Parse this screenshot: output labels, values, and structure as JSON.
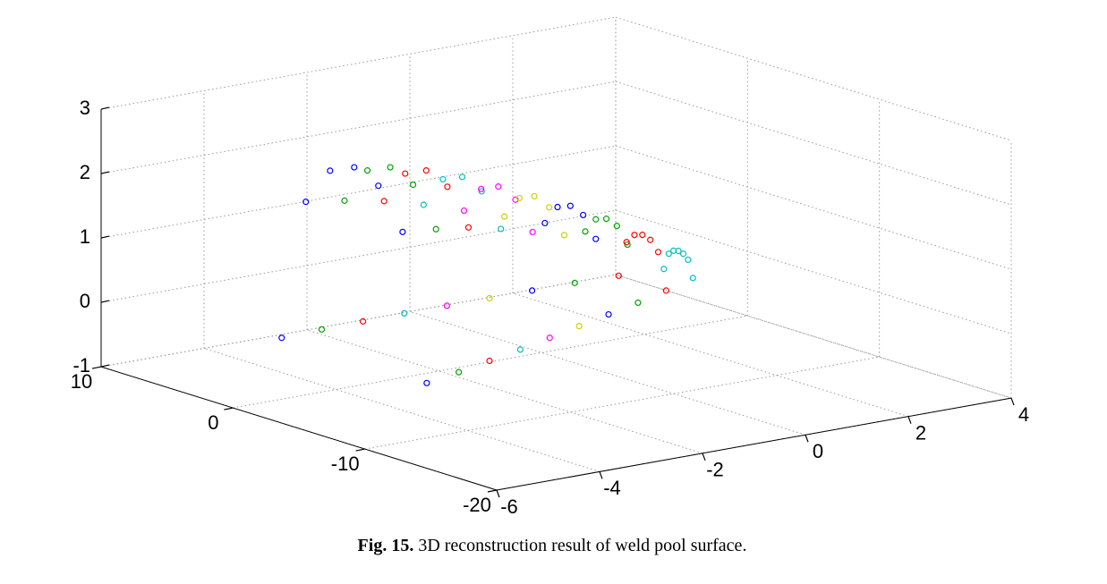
{
  "chart_data": {
    "type": "scatter3d",
    "xlim": [
      -6,
      4
    ],
    "ylim": [
      -20,
      10
    ],
    "zlim": [
      -1,
      3
    ],
    "xticks": [
      -6,
      -4,
      -2,
      0,
      2,
      4
    ],
    "yticks": [
      -20,
      -10,
      0,
      10
    ],
    "zticks": [
      -1,
      0,
      1,
      2,
      3
    ],
    "grid": true,
    "series": [
      {
        "color": "#0000ff",
        "x": [
          -3.9,
          -3.9,
          -3.9,
          -3.9,
          -3.9,
          -3.9,
          -3.9
        ],
        "y": [
          -6.5,
          -4.67,
          -2.83,
          -1,
          0.83,
          2.67,
          4.5
        ],
        "z": [
          -0.5,
          1.73,
          2.33,
          2.5,
          2.33,
          1.73,
          -0.5
        ]
      },
      {
        "color": "#00a000",
        "x": [
          -3.2,
          -3.2,
          -3.2,
          -3.2,
          -3.2,
          -3.2,
          -3.2
        ],
        "y": [
          -6.2,
          -4.47,
          -2.73,
          -1,
          0.73,
          2.47,
          4.2
        ],
        "z": [
          -0.45,
          1.66,
          2.24,
          2.4,
          2.24,
          1.66,
          -0.45
        ]
      },
      {
        "color": "#ff0000",
        "x": [
          -2.5,
          -2.5,
          -2.5,
          -2.5,
          -2.5,
          -2.5,
          -2.5
        ],
        "y": [
          -5.8,
          -4.2,
          -2.6,
          -1,
          0.6,
          2.2,
          3.8
        ],
        "z": [
          -0.4,
          1.57,
          2.1,
          2.25,
          2.1,
          1.57,
          -0.4
        ]
      },
      {
        "color": "#00c0c0",
        "x": [
          -1.8,
          -1.8,
          -1.8,
          -1.8,
          -1.8,
          -1.8,
          -1.8
        ],
        "y": [
          -5.4,
          -3.93,
          -2.47,
          -1,
          0.47,
          1.93,
          3.4
        ],
        "z": [
          -0.35,
          1.43,
          1.92,
          2.05,
          1.92,
          1.43,
          -0.35
        ]
      },
      {
        "color": "#ff00ff",
        "x": [
          -1.1,
          -1.1,
          -1.1,
          -1.1,
          -1.1,
          -1.1,
          -1.1
        ],
        "y": [
          -4.9,
          -3.6,
          -2.3,
          -1,
          0.3,
          1.6,
          2.9
        ],
        "z": [
          -0.3,
          1.26,
          1.68,
          1.8,
          1.68,
          1.26,
          -0.3
        ]
      },
      {
        "color": "#d0d000",
        "x": [
          -0.4,
          -0.4,
          -0.4,
          -0.4,
          -0.4,
          -0.4,
          -0.4
        ],
        "y": [
          -4.4,
          -3.27,
          -2.13,
          -1,
          0.13,
          1.27,
          2.4
        ],
        "z": [
          -0.25,
          1.09,
          1.45,
          1.55,
          1.45,
          1.09,
          -0.25
        ]
      },
      {
        "color": "#0000ff",
        "x": [
          0.3,
          0.3,
          0.3,
          0.3,
          0.3,
          0.3,
          0.3
        ],
        "y": [
          -3.9,
          -2.93,
          -1.97,
          -1,
          -0.03,
          0.93,
          1.9
        ],
        "z": [
          -0.2,
          0.91,
          1.22,
          1.3,
          1.22,
          0.91,
          -0.2
        ]
      },
      {
        "color": "#00a000",
        "x": [
          1.0,
          1.0,
          1.0,
          1.0,
          1.0,
          1.0,
          1.0
        ],
        "y": [
          -3.4,
          -2.6,
          -1.8,
          -1,
          -0.2,
          0.6,
          1.4
        ],
        "z": [
          -0.15,
          0.7,
          0.94,
          1.0,
          0.94,
          0.7,
          -0.15
        ]
      },
      {
        "color": "#ff0000",
        "x": [
          1.7,
          1.7,
          1.7,
          1.7,
          1.7,
          1.7,
          1.7
        ],
        "y": [
          -2.8,
          -2.2,
          -1.6,
          -1,
          -0.4,
          0.2,
          0.8
        ],
        "z": [
          -0.1,
          0.46,
          0.61,
          0.65,
          0.61,
          0.46,
          -0.1
        ]
      },
      {
        "color": "#00c0c0",
        "x": [
          2.4,
          2.4,
          2.4,
          2.4,
          2.4,
          2.4,
          2.4
        ],
        "y": [
          -2.1,
          -1.73,
          -1.37,
          -1,
          -0.63,
          -0.27,
          0.1
        ],
        "z": [
          -0.05,
          0.21,
          0.28,
          0.3,
          0.28,
          0.21,
          -0.05
        ]
      }
    ]
  },
  "caption": {
    "label": "Fig. 15.",
    "text": "3D reconstruction result of weld pool surface."
  }
}
